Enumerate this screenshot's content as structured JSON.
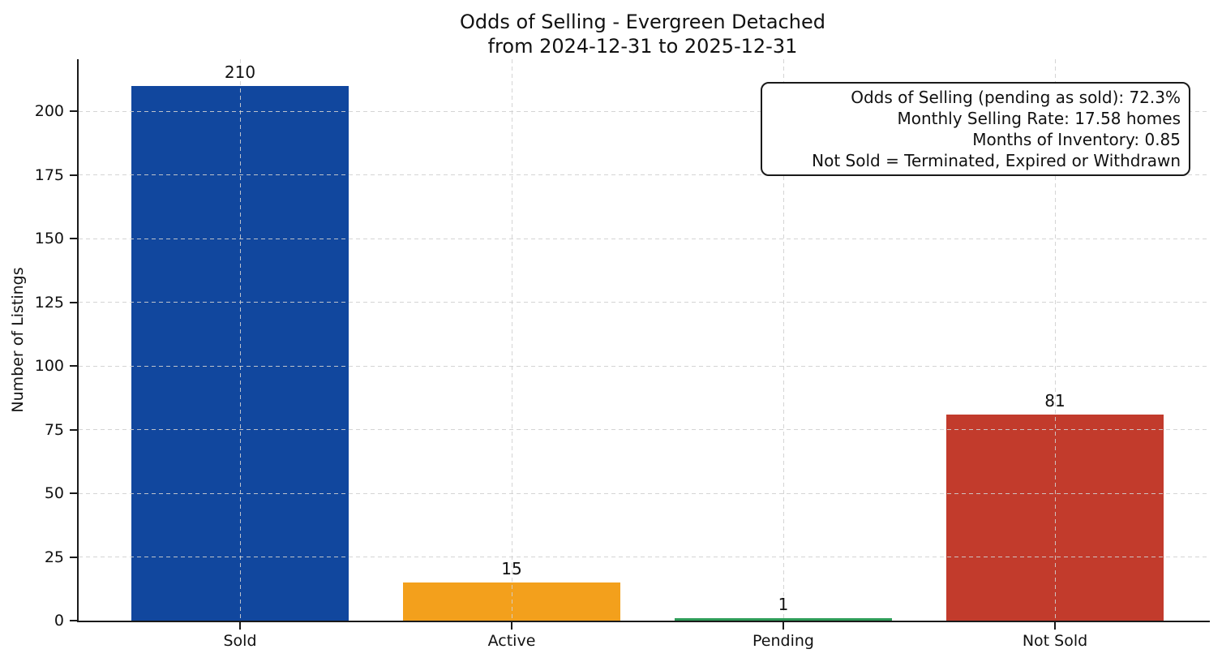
{
  "chart_data": {
    "type": "bar",
    "title": "Odds of Selling - Evergreen Detached",
    "subtitle": "from 2024-12-31 to 2025-12-31",
    "categories": [
      "Sold",
      "Active",
      "Pending",
      "Not Sold"
    ],
    "values": [
      210,
      15,
      1,
      81
    ],
    "bar_colors": [
      "#11479E",
      "#F3A01C",
      "#2E9C58",
      "#C23B2C"
    ],
    "bar_value_labels": [
      "210",
      "15",
      "1",
      "81"
    ],
    "xlabel": "",
    "ylabel": "Number of Listings",
    "yticks": [
      0,
      25,
      50,
      75,
      100,
      125,
      150,
      175,
      200
    ],
    "ylim": [
      0,
      220.5
    ],
    "grid": true,
    "grid_style": "dashed",
    "grid_axes": "both",
    "legend": "none",
    "annotation_box": {
      "position": "top-right",
      "lines": [
        "Odds of Selling (pending as sold): 72.3%",
        "Monthly Selling Rate: 17.58 homes",
        "Months of Inventory: 0.85",
        "Not Sold = Terminated, Expired or Withdrawn"
      ]
    }
  },
  "style_colors": {
    "axis": "#1a1a1a",
    "grid": "#d0d0d0",
    "background": "#ffffff",
    "text": "#111111"
  }
}
